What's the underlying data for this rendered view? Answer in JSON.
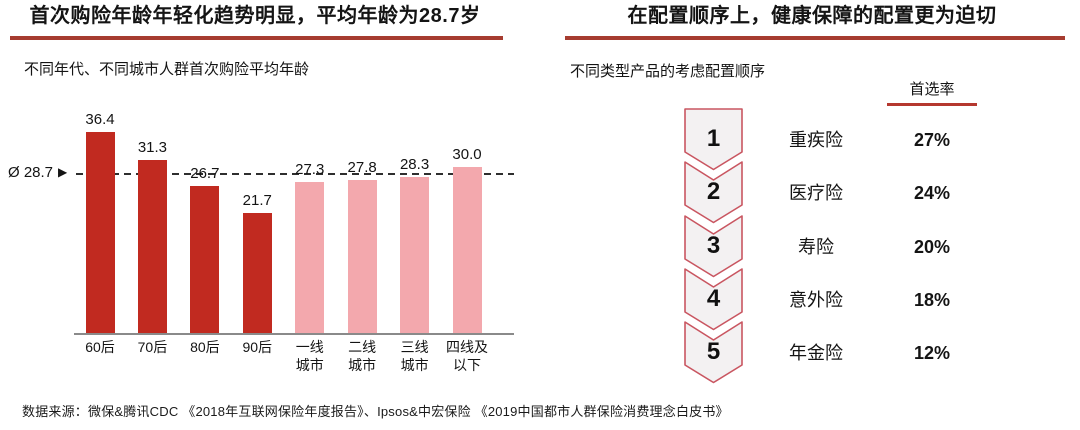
{
  "left_panel": {
    "title": "首次购险年龄年轻化趋势明显，平均年龄为28.7岁",
    "subtitle": "不同年代、不同城市人群首次购险平均年龄",
    "average_marker": {
      "prefix": "Ø 28.7",
      "arrow": "▶"
    }
  },
  "right_panel": {
    "title": "在配置顺序上，健康保障的配置更为迫切",
    "subtitle": "不同类型产品的考虑配置顺序",
    "column_header": "首选率"
  },
  "footer": {
    "source": "数据来源：微保&腾讯CDC 《2018年互联网保险年度报告》、Ipsos&中宏保险 《2019中国都市人群保险消费理念白皮书》"
  },
  "colors": {
    "accent_underline": "#a63c30",
    "header_underline": "#b5382f",
    "bar_dark": "#c12a20",
    "bar_light": "#f3a8ad",
    "chevron_border": "#c95661",
    "chevron_fill": "#f3f1f2",
    "axis": "#8a8a8a",
    "dashed_line": "#2e2e2e"
  },
  "chart_data": [
    {
      "type": "bar",
      "title": "不同年代、不同城市人群首次购险平均年龄",
      "categories": [
        "60后",
        "70后",
        "80后",
        "90后",
        "一线城市",
        "二线城市",
        "三线城市",
        "四线及以下"
      ],
      "category_display": [
        "60后",
        "70后",
        "80后",
        "90后",
        "一线\n城市",
        "二线\n城市",
        "三线\n城市",
        "四线及\n以下"
      ],
      "values": [
        36.4,
        31.3,
        26.7,
        21.7,
        27.3,
        27.8,
        28.3,
        30.0
      ],
      "bar_color_keys": [
        "dark",
        "dark",
        "dark",
        "dark",
        "light",
        "light",
        "light",
        "light"
      ],
      "average": 28.7,
      "average_label": "Ø 28.7",
      "xlabel": "",
      "ylabel": "",
      "ylim": [
        0,
        40
      ],
      "grid": false,
      "legend": "none"
    },
    {
      "type": "table",
      "title": "不同类型产品的考虑配置顺序",
      "value_header": "首选率",
      "rows": [
        {
          "rank": "1",
          "label": "重疾险",
          "value": "27%"
        },
        {
          "rank": "2",
          "label": "医疗险",
          "value": "24%"
        },
        {
          "rank": "3",
          "label": "寿险",
          "value": "20%"
        },
        {
          "rank": "4",
          "label": "意外险",
          "value": "18%"
        },
        {
          "rank": "5",
          "label": "年金险",
          "value": "12%"
        }
      ]
    }
  ]
}
